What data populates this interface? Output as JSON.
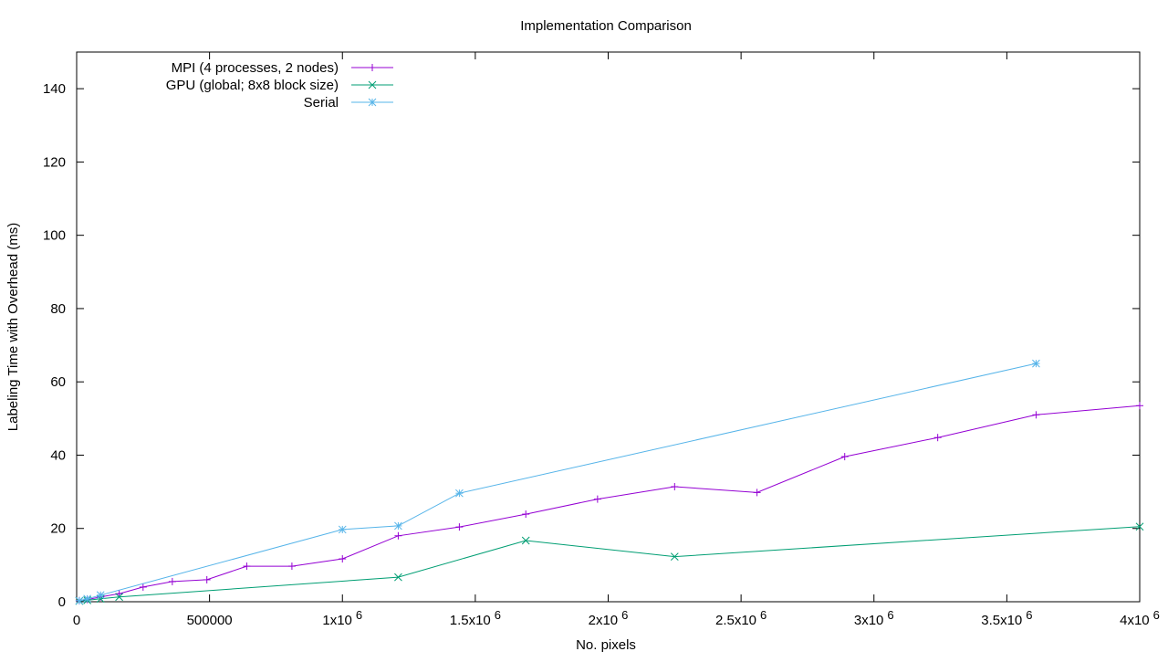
{
  "chart_data": {
    "type": "line",
    "title": "Implementation Comparison",
    "xlabel": "No. pixels",
    "ylabel": "Labeling Time with Overhead (ms)",
    "xlim": [
      0,
      4000000
    ],
    "ylim": [
      0,
      150
    ],
    "grid": false,
    "legend_position": "top-left",
    "x_ticks": [
      {
        "value": 0,
        "base": "0",
        "exp": ""
      },
      {
        "value": 500000,
        "base": "500000",
        "exp": ""
      },
      {
        "value": 1000000,
        "base": "1x10",
        "exp": "6"
      },
      {
        "value": 1500000,
        "base": "1.5x10",
        "exp": "6"
      },
      {
        "value": 2000000,
        "base": "2x10",
        "exp": "6"
      },
      {
        "value": 2500000,
        "base": "2.5x10",
        "exp": "6"
      },
      {
        "value": 3000000,
        "base": "3x10",
        "exp": "6"
      },
      {
        "value": 3500000,
        "base": "3.5x10",
        "exp": "6"
      },
      {
        "value": 4000000,
        "base": "4x10",
        "exp": "6"
      }
    ],
    "y_ticks": [
      0,
      20,
      40,
      60,
      80,
      100,
      120,
      140
    ],
    "series": [
      {
        "name": "MPI (4 processes, 2 nodes)",
        "color": "#9400d3",
        "marker": "plus",
        "x": [
          10000,
          40000,
          90000,
          160000,
          250000,
          360000,
          490000,
          640000,
          810000,
          1000000,
          1210000,
          1440000,
          1690000,
          1960000,
          2250000,
          2560000,
          2890000,
          3240000,
          3610000,
          4000000
        ],
        "y": [
          0.3,
          0.6,
          1.3,
          2.2,
          4.0,
          5.5,
          6.0,
          9.7,
          9.7,
          11.7,
          18.0,
          20.4,
          23.9,
          28.0,
          31.4,
          29.8,
          39.6,
          44.8,
          51.0,
          53.5
        ]
      },
      {
        "name": "GPU (global; 8x8 block size)",
        "color": "#009e73",
        "marker": "cross",
        "x": [
          10000,
          40000,
          90000,
          160000,
          1210000,
          1690000,
          2250000,
          4000000
        ],
        "y": [
          0.2,
          0.4,
          0.8,
          1.3,
          6.7,
          16.7,
          12.3,
          20.5
        ]
      },
      {
        "name": "Serial",
        "color": "#56b4e9",
        "marker": "star",
        "x": [
          10000,
          40000,
          90000,
          1000000,
          1210000,
          1440000,
          3610000
        ],
        "y": [
          0.3,
          0.8,
          1.8,
          19.7,
          20.7,
          29.6,
          65.0
        ]
      }
    ]
  }
}
